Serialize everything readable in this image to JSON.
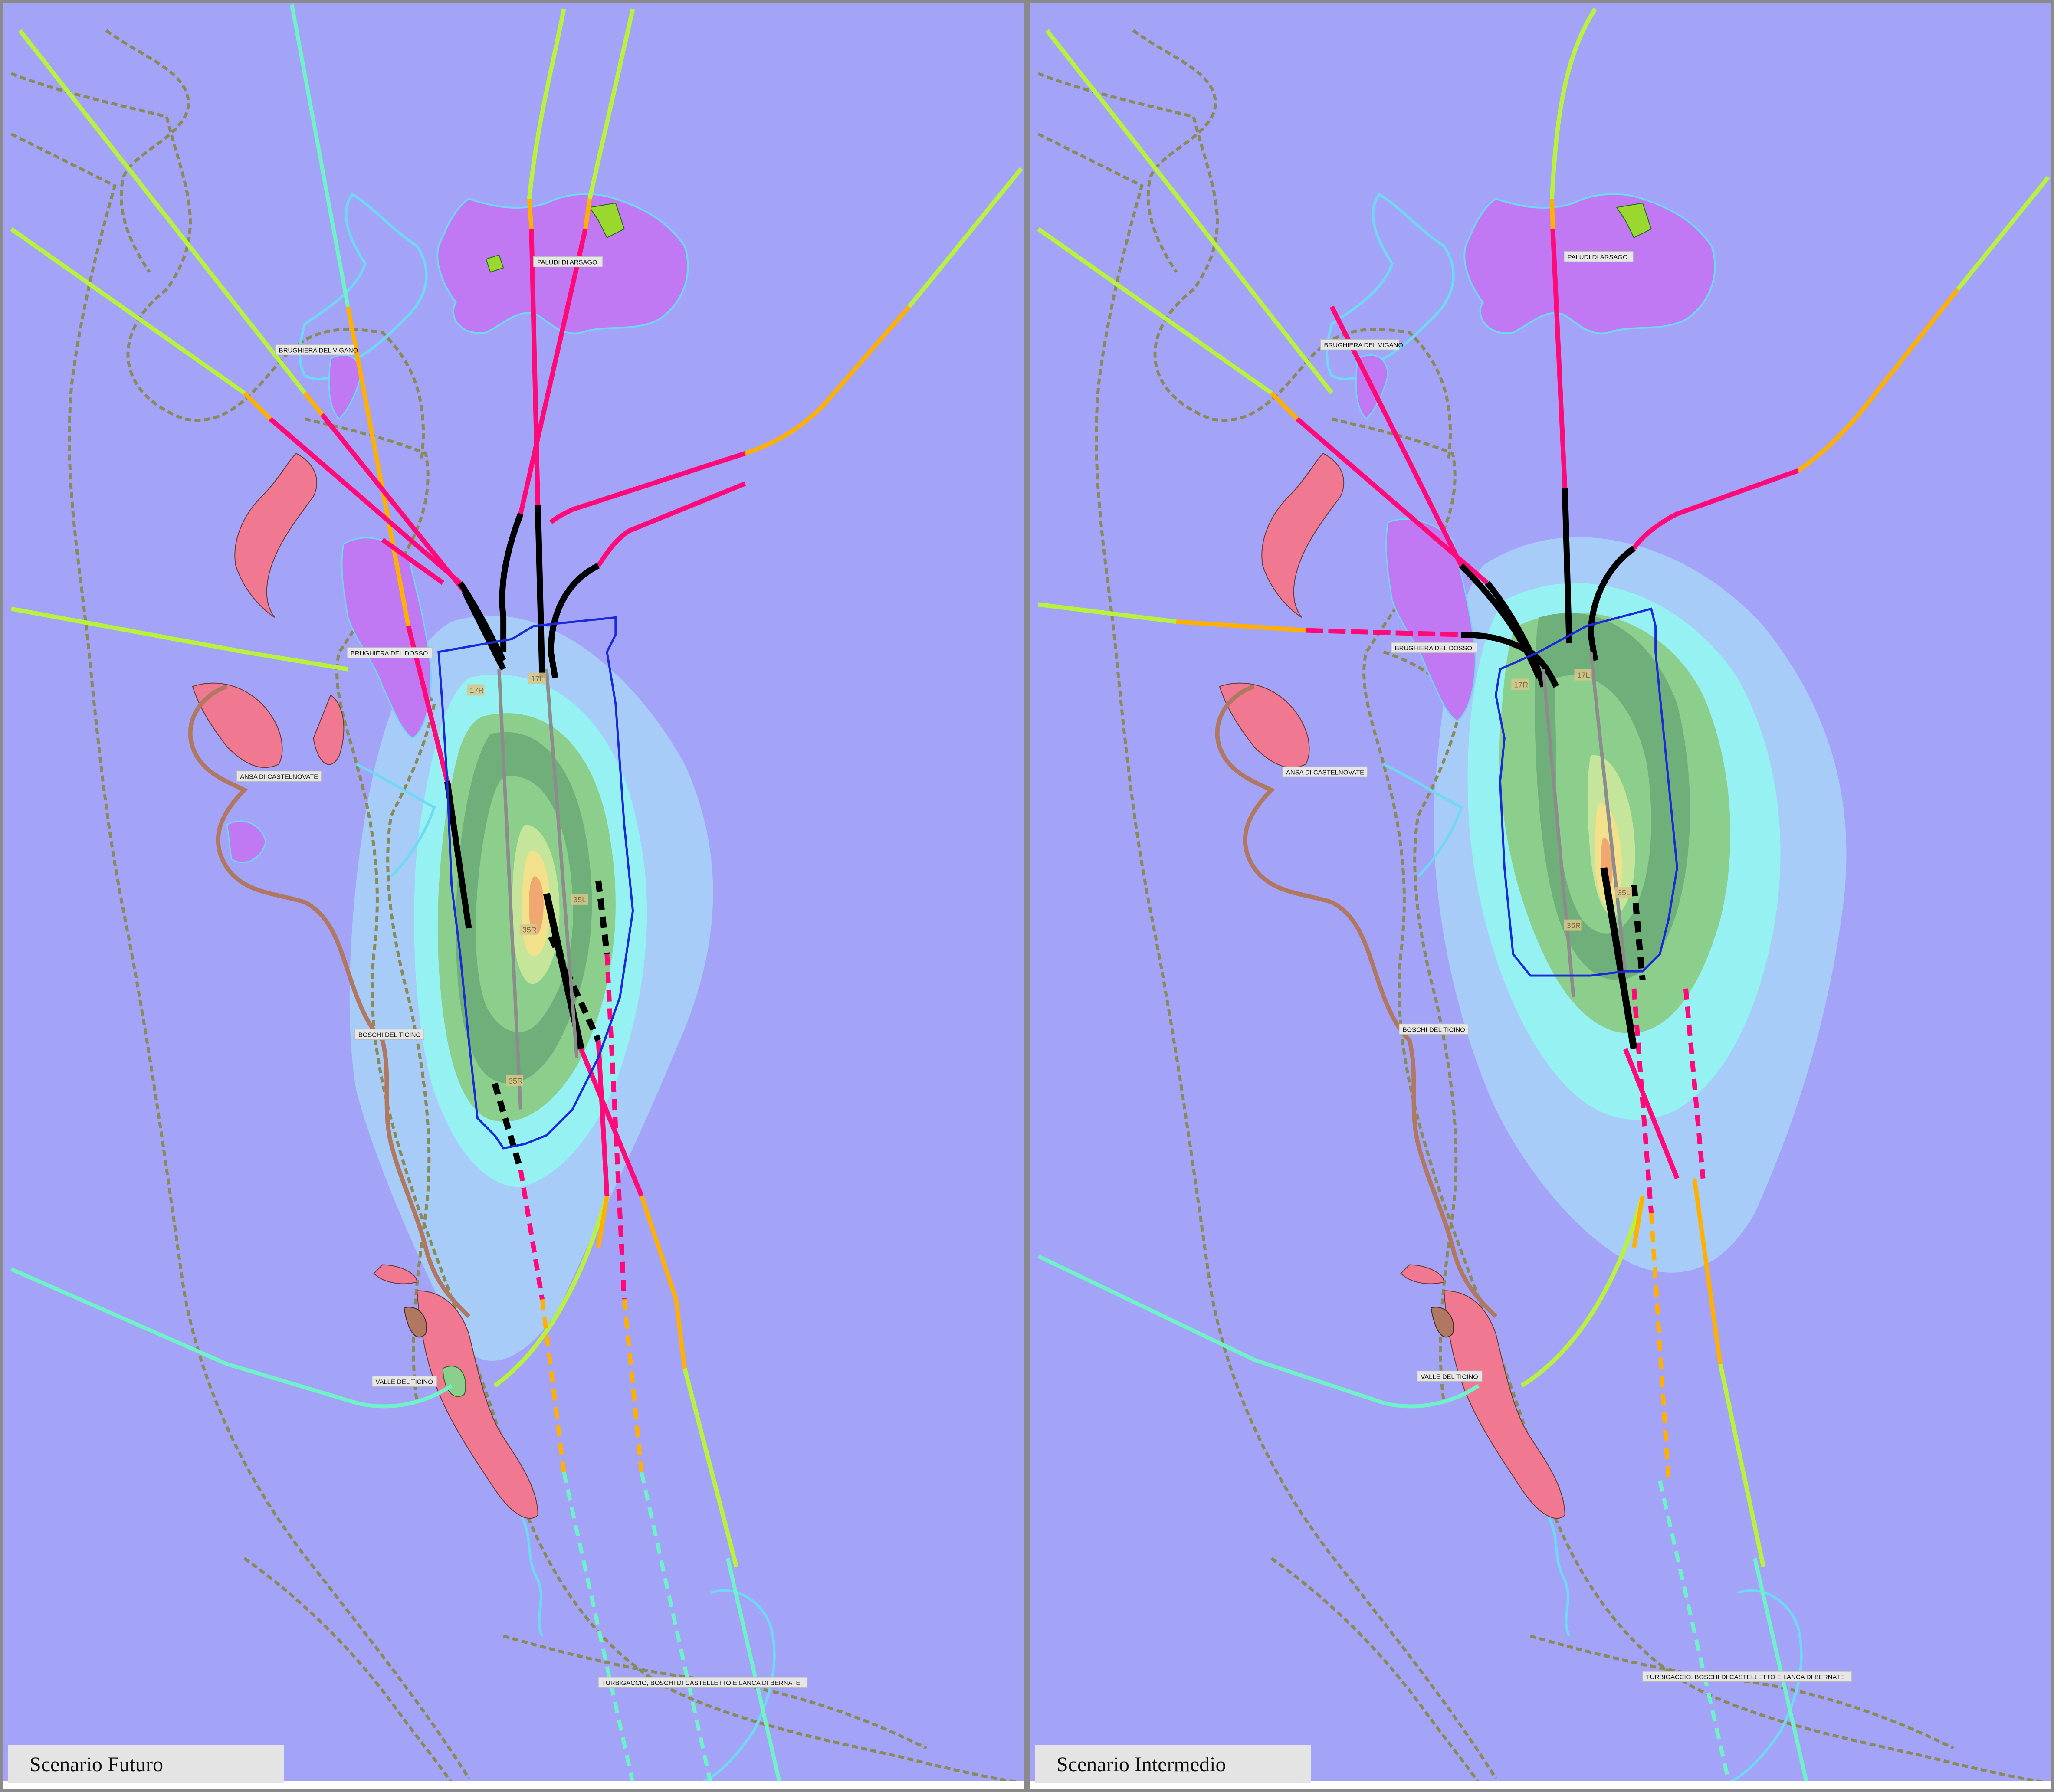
{
  "panels": [
    {
      "title": "Scenario Futuro",
      "labels": {
        "paludi": "PALUDI DI ARSAGO",
        "vigano": "BRUGHIERA DEL VIGANO",
        "dosso": "BRUGHIERA DEL DOSSO",
        "castelnovate": "ANSA DI CASTELNOVATE",
        "boschi": "BOSCHI DEL TICINO",
        "valle": "VALLE DEL TICINO",
        "turbigaccio": "TURBIGACCIO, BOSCHI DI CASTELLETTO E LANCA DI BERNATE"
      },
      "runways": {
        "r17r": "17R",
        "r17l": "17L",
        "r35l": "35L",
        "r35r": "35R"
      }
    },
    {
      "title": "Scenario Intermedio",
      "labels": {
        "paludi": "PALUDI DI ARSAGO",
        "vigano": "BRUGHIERA DEL VIGANO",
        "dosso": "BRUGHIERA DEL DOSSO",
        "castelnovate": "ANSA DI CASTELNOVATE",
        "boschi": "BOSCHI DEL TICINO",
        "valle": "VALLE DEL TICINO",
        "turbigaccio": "TURBIGACCIO, BOSCHI DI CASTELLETTO E LANCA DI BERNATE"
      },
      "runways": {
        "r17r": "17R",
        "r17l": "17L",
        "r35l": "35L",
        "r35r": "35R"
      }
    }
  ],
  "colors": {
    "background": "#a3a4f8",
    "contour_1": "#a8ccf8",
    "contour_2": "#96f2f2",
    "contour_3": "#8ccf8c",
    "contour_4": "#6fb07a",
    "contour_5": "#c5e59a",
    "contour_6": "#f3e08a",
    "contour_7": "#f0a870",
    "natura_purple": "#c079f2",
    "natura_pink": "#f07890",
    "natura_brown": "#b07860",
    "route_black": "#000000",
    "route_magenta": "#ff0a78",
    "route_orange": "#ffb000",
    "route_lime": "#b8f23c",
    "route_teal": "#6ff2c8",
    "boundary_dashed": "#8a8a58",
    "boundary_cyan": "#6fd8f2",
    "airport_boundary": "#1a2ad8"
  }
}
